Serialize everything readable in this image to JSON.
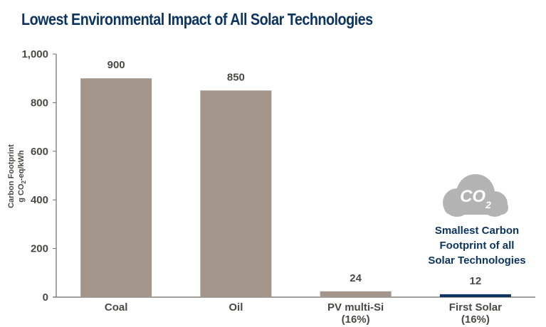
{
  "chart_data": {
    "type": "bar",
    "title": "Lowest Environmental Impact of All Solar Technologies",
    "ylabel_line1": "Carbon Footprint",
    "ylabel_line2_prefix": "g CO",
    "ylabel_line2_sub": "2",
    "ylabel_line2_suffix": "-eq/kWh",
    "ylim": [
      0,
      1000
    ],
    "yticks": [
      0,
      200,
      400,
      600,
      800,
      1000
    ],
    "ytick_labels": [
      "0",
      "200",
      "400",
      "600",
      "800",
      "1,000"
    ],
    "categories": [
      {
        "line1": "Coal",
        "line2": ""
      },
      {
        "line1": "Oil",
        "line2": ""
      },
      {
        "line1": "PV multi-Si",
        "line2": "(16%)"
      },
      {
        "line1": "First Solar",
        "line2": "(16%)"
      }
    ],
    "values": [
      900,
      850,
      24,
      12
    ],
    "data_labels": [
      "900",
      "850",
      "24",
      "12"
    ],
    "bar_colors": [
      "#a39589",
      "#a39589",
      "#a39589",
      "#0d3560"
    ],
    "grid": false
  },
  "annotation": {
    "icon_text": "CO",
    "icon_sub": "2",
    "lines": [
      "Smallest Carbon",
      "Footprint of all",
      "Solar Technologies"
    ]
  }
}
